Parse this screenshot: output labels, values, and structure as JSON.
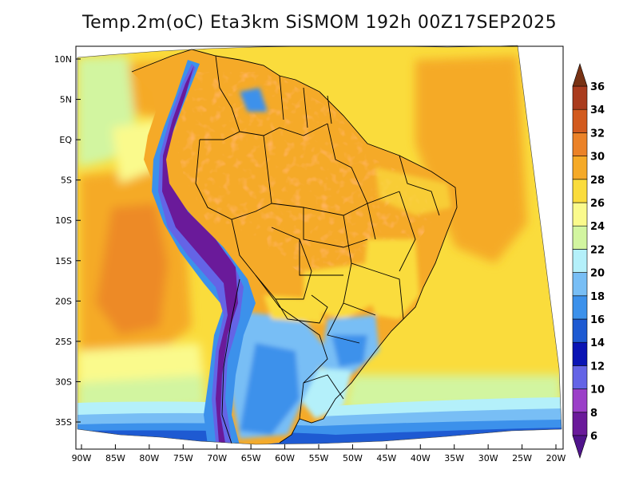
{
  "title": "Temp.2m(oC) Eta3km SiSMOM 192h 00Z17SEP2025",
  "map": {
    "lat_ticks": [
      {
        "value": 10,
        "label": "10N"
      },
      {
        "value": 5,
        "label": "5N"
      },
      {
        "value": 0,
        "label": "EQ"
      },
      {
        "value": -5,
        "label": "5S"
      },
      {
        "value": -10,
        "label": "10S"
      },
      {
        "value": -15,
        "label": "15S"
      },
      {
        "value": -20,
        "label": "20S"
      },
      {
        "value": -25,
        "label": "25S"
      },
      {
        "value": -30,
        "label": "30S"
      },
      {
        "value": -35,
        "label": "35S"
      }
    ],
    "lon_ticks": [
      {
        "value": -90,
        "label": "90W"
      },
      {
        "value": -85,
        "label": "85W"
      },
      {
        "value": -80,
        "label": "80W"
      },
      {
        "value": -75,
        "label": "75W"
      },
      {
        "value": -70,
        "label": "70W"
      },
      {
        "value": -65,
        "label": "65W"
      },
      {
        "value": -60,
        "label": "60W"
      },
      {
        "value": -55,
        "label": "55W"
      },
      {
        "value": -50,
        "label": "50W"
      },
      {
        "value": -45,
        "label": "45W"
      },
      {
        "value": -40,
        "label": "40W"
      },
      {
        "value": -35,
        "label": "35W"
      },
      {
        "value": -30,
        "label": "30W"
      },
      {
        "value": -25,
        "label": "25W"
      },
      {
        "value": -20,
        "label": "20W"
      }
    ]
  },
  "colorbar": {
    "min": 6,
    "max": 36,
    "labels": [
      "36",
      "34",
      "32",
      "30",
      "28",
      "26",
      "24",
      "22",
      "20",
      "18",
      "16",
      "14",
      "12",
      "10",
      "8",
      "6"
    ],
    "colors": [
      {
        "from": 6,
        "to": 8,
        "color": "#6a1a9a"
      },
      {
        "from": 8,
        "to": 10,
        "color": "#9b3fc8"
      },
      {
        "from": 10,
        "to": 12,
        "color": "#6464e6"
      },
      {
        "from": 12,
        "to": 14,
        "color": "#0a14b4"
      },
      {
        "from": 14,
        "to": 16,
        "color": "#1e5ad2"
      },
      {
        "from": 16,
        "to": 18,
        "color": "#3c91eb"
      },
      {
        "from": 18,
        "to": 20,
        "color": "#78bef5"
      },
      {
        "from": 20,
        "to": 22,
        "color": "#b4f0fa"
      },
      {
        "from": 22,
        "to": 24,
        "color": "#d2f5a0"
      },
      {
        "from": 24,
        "to": 26,
        "color": "#fafa8c"
      },
      {
        "from": 26,
        "to": 28,
        "color": "#fadc3c"
      },
      {
        "from": 28,
        "to": 30,
        "color": "#f5aa28"
      },
      {
        "from": 30,
        "to": 32,
        "color": "#eb8228"
      },
      {
        "from": 32,
        "to": 34,
        "color": "#d25a1e"
      },
      {
        "from": 34,
        "to": 36,
        "color": "#aa3c1e"
      }
    ],
    "over_color": "#783214",
    "under_color": "#50148c"
  }
}
